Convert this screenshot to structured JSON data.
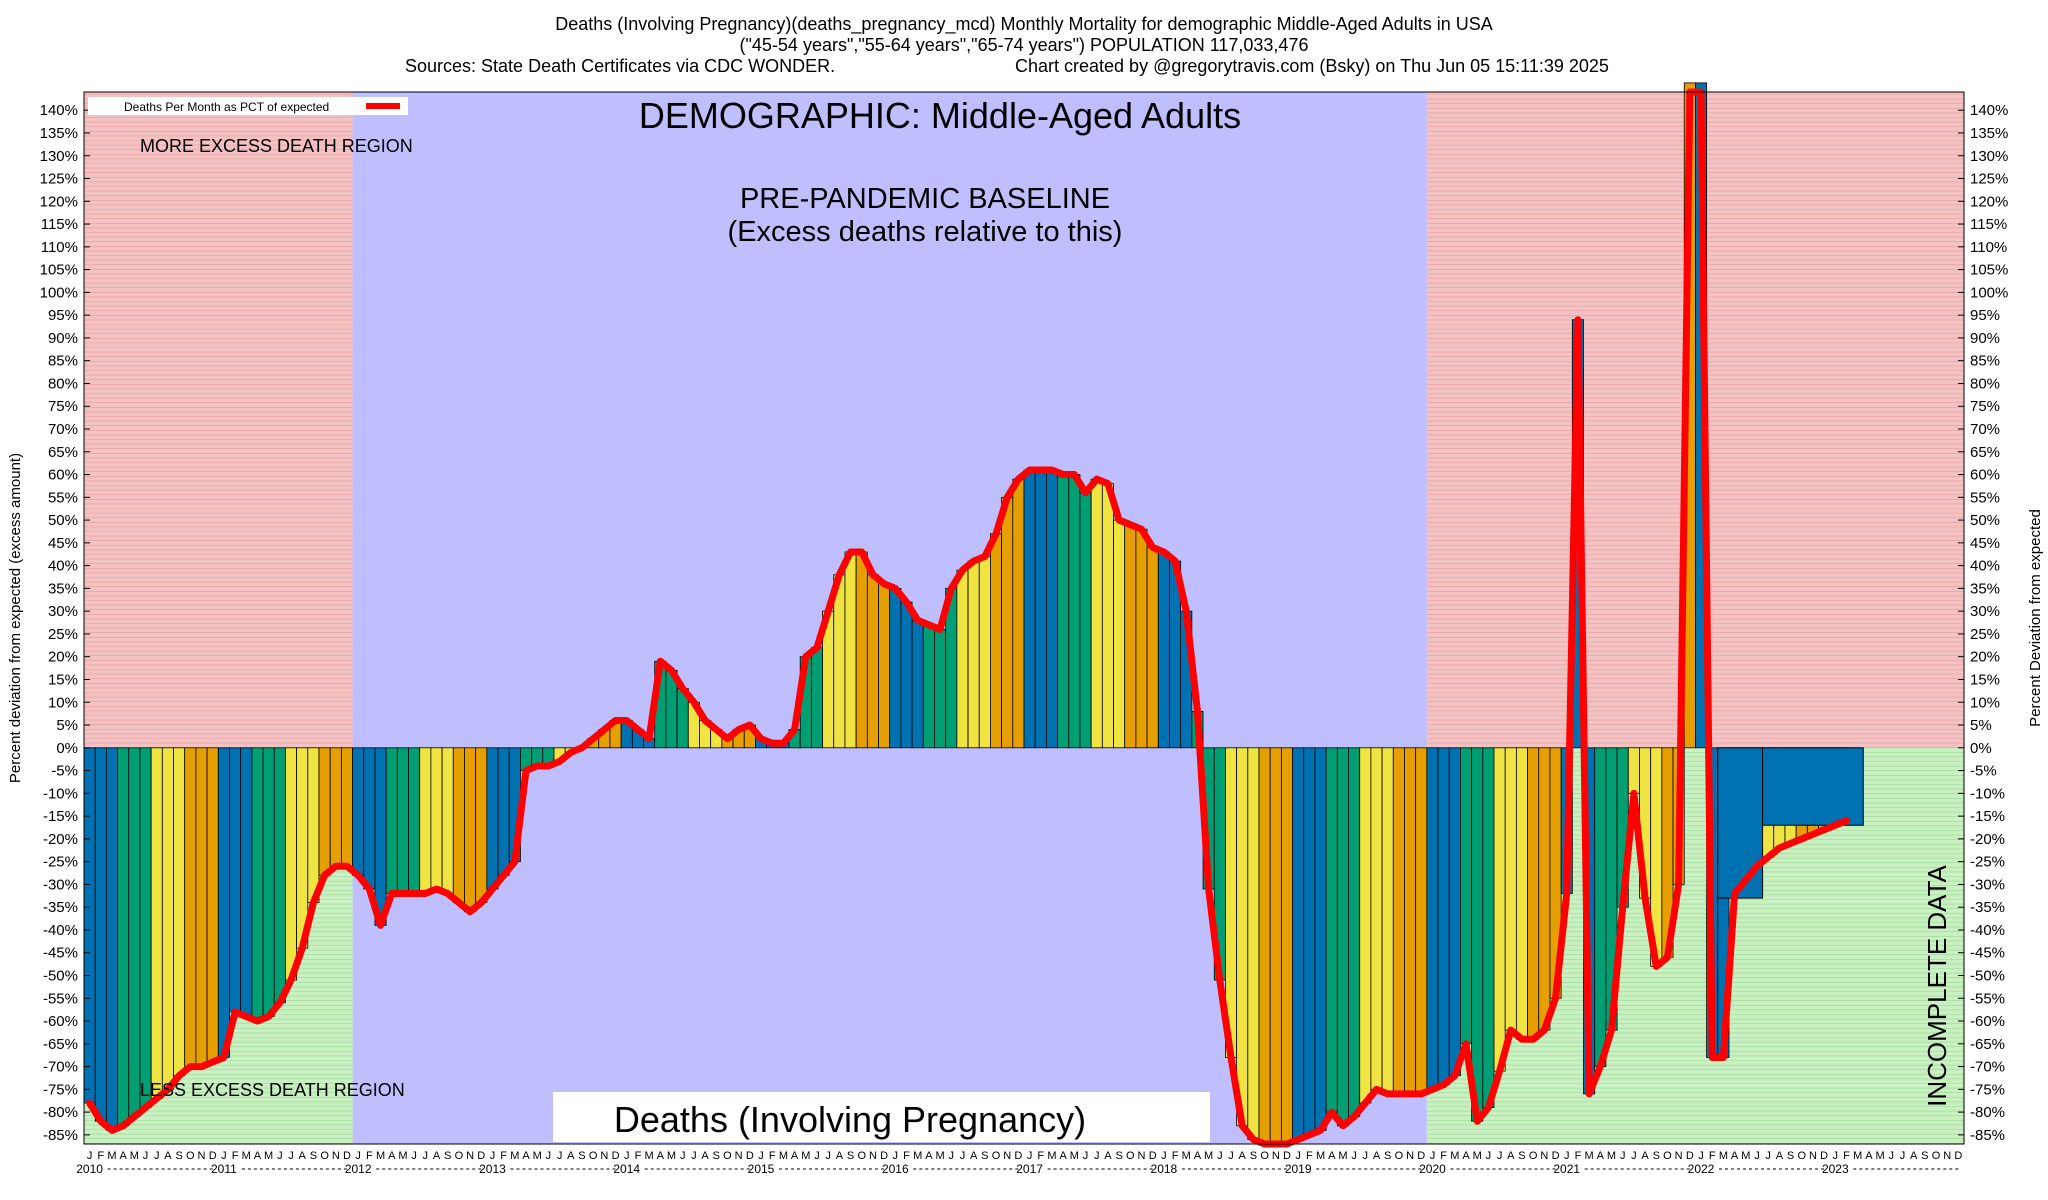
{
  "header": {
    "line1": "Deaths (Involving Pregnancy)(deaths_pregnancy_mcd) Monthly Mortality for demographic Middle-Aged Adults in USA",
    "line2": "(\"45-54 years\",\"55-64 years\",\"65-74 years\") POPULATION 117,033,476",
    "line3_left": "Sources: State Death Certificates via CDC WONDER.",
    "line3_right": "Chart created by @gregorytravis.com (Bsky) on Thu Jun 05 15:11:39 2025"
  },
  "chart_data": {
    "type": "bar",
    "title": "DEMOGRAPHIC: Middle-Aged Adults",
    "ylabel_left": "Percent deviation from expected (excess amount)",
    "ylabel_right": "Percent Deviation from expected",
    "ylim": [
      -87,
      144
    ],
    "yticks": [
      140,
      135,
      130,
      125,
      120,
      115,
      110,
      105,
      100,
      95,
      90,
      85,
      80,
      75,
      70,
      65,
      60,
      55,
      50,
      45,
      40,
      35,
      30,
      25,
      20,
      15,
      10,
      5,
      0,
      -5,
      -10,
      -15,
      -20,
      -25,
      -30,
      -35,
      -40,
      -45,
      -50,
      -55,
      -60,
      -65,
      -70,
      -75,
      -80,
      -85
    ],
    "legend": {
      "label": "Deaths Per Month as PCT of expected",
      "position": "top-left",
      "line_color": "#ff0000"
    },
    "annotations": {
      "more_region": "MORE EXCESS DEATH REGION",
      "less_region": "LESS EXCESS DEATH REGION",
      "baseline_line1": "PRE-PANDEMIC BASELINE",
      "baseline_line2": "(Excess deaths relative to this)",
      "incomplete": "INCOMPLETE DATA",
      "cause_label": "Deaths (Involving Pregnancy)"
    },
    "x_start": "2010-01",
    "month_letters": [
      "J",
      "F",
      "M",
      "A",
      "M",
      "J",
      "J",
      "A",
      "S",
      "O",
      "N",
      "D"
    ],
    "years": [
      "2010",
      "2011",
      "2012",
      "2013",
      "2014",
      "2015",
      "2016",
      "2017",
      "2018",
      "2019",
      "2020",
      "2021",
      "2022",
      "2023"
    ],
    "baseline_period": [
      "2012-01",
      "2019-12"
    ],
    "bar_colors": [
      "#0072b2",
      "#009e73",
      "#f0e442",
      "#e69f00"
    ],
    "values": [
      -78,
      -82,
      -84,
      -83,
      -81,
      -79,
      -77,
      -75,
      -72,
      -70,
      -70,
      -69,
      -68,
      -58,
      -59,
      -60,
      -59,
      -56,
      -51,
      -44,
      -34,
      -28,
      -26,
      -26,
      -28,
      -31,
      -39,
      -32,
      -32,
      -32,
      -32,
      -31,
      -32,
      -34,
      -36,
      -34,
      -31,
      -28,
      -25,
      -5,
      -4,
      -4,
      -3,
      -1,
      0,
      2,
      4,
      6,
      6,
      4,
      2,
      19,
      17,
      13,
      10,
      6,
      4,
      2,
      4,
      5,
      2,
      1,
      1,
      4,
      20,
      22,
      30,
      38,
      43,
      43,
      38,
      36,
      35,
      32,
      28,
      27,
      26,
      35,
      39,
      41,
      42,
      47,
      55,
      59,
      61,
      61,
      61,
      60,
      60,
      56,
      59,
      58,
      50,
      49,
      48,
      44,
      43,
      41,
      30,
      8,
      -31,
      -51,
      -68,
      -83,
      -86,
      -87,
      -87,
      -87,
      -86,
      -85,
      -84,
      -80,
      -83,
      -81,
      -78,
      -75,
      -76,
      -76,
      -76,
      -76,
      -75,
      -74,
      -72,
      -65,
      -82,
      -79,
      -71,
      -62,
      -64,
      -64,
      -62,
      -55,
      -32,
      94,
      -76,
      -70,
      -62,
      -35,
      -10,
      -33,
      -48,
      -46,
      -30,
      146,
      146,
      -68,
      -68,
      -32,
      -29,
      -26,
      -24,
      -22,
      -21,
      -20,
      -19,
      -18,
      -17,
      -16
    ],
    "incomplete_blocks": [
      {
        "from": "2022-03",
        "to": "2022-06",
        "value": -33
      },
      {
        "from": "2022-07",
        "to": "2023-03",
        "value": -17
      }
    ]
  }
}
